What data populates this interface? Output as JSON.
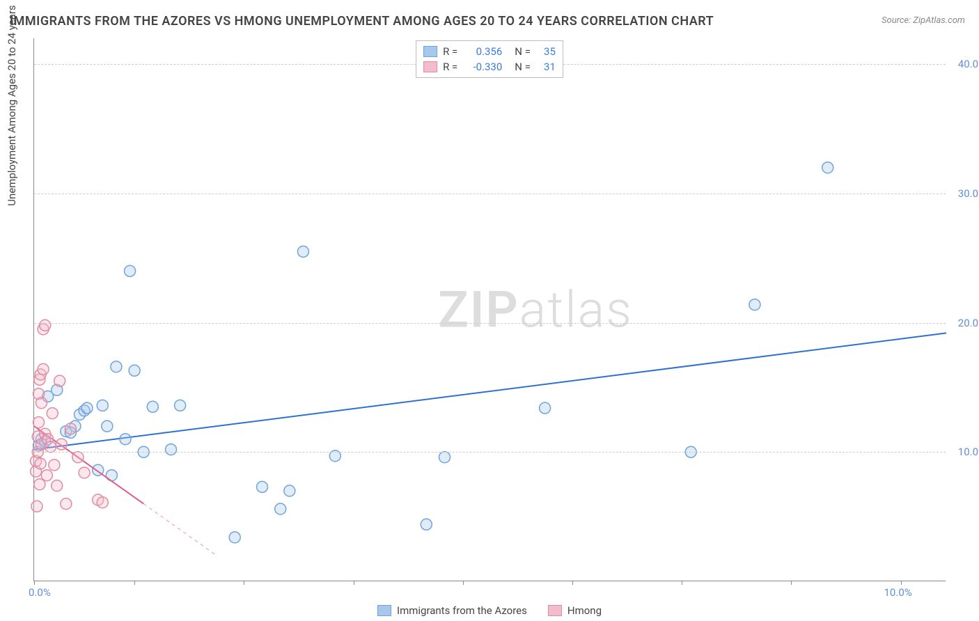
{
  "title": "IMMIGRANTS FROM THE AZORES VS HMONG UNEMPLOYMENT AMONG AGES 20 TO 24 YEARS CORRELATION CHART",
  "source": "Source: ZipAtlas.com",
  "ylabel": "Unemployment Among Ages 20 to 24 years",
  "watermark_a": "ZIP",
  "watermark_b": "atlas",
  "chart": {
    "type": "scatter-with-regression",
    "xlim": [
      0,
      10
    ],
    "ylim": [
      0,
      42
    ],
    "yticks": [
      10,
      20,
      30,
      40
    ],
    "ytick_labels": [
      "10.0%",
      "20.0%",
      "30.0%",
      "40.0%"
    ],
    "xticks": [
      0,
      1.1,
      2.3,
      3.5,
      4.7,
      5.9,
      7.1,
      8.3,
      9.5
    ],
    "xtick_labels_shown": {
      "0": "0.0%",
      "9.5": "10.0%"
    },
    "grid_color": "#cccccc",
    "background_color": "#ffffff",
    "marker_radius": 8,
    "marker_stroke_width": 1.5,
    "marker_fill_opacity": 0.35,
    "line_width": 2,
    "series": [
      {
        "name": "Immigrants from the Azores",
        "key": "azores",
        "color_stroke": "#6fa3db",
        "color_fill": "#a7c8ea",
        "r": 0.356,
        "n": 35,
        "regression": {
          "x1": 0,
          "y1": 10.2,
          "x2": 10,
          "y2": 19.2,
          "dash_after_x": null
        },
        "points": [
          [
            0.05,
            10.5
          ],
          [
            0.08,
            11.0
          ],
          [
            0.12,
            10.8
          ],
          [
            0.15,
            14.3
          ],
          [
            0.25,
            14.8
          ],
          [
            0.35,
            11.6
          ],
          [
            0.45,
            12.0
          ],
          [
            0.5,
            12.9
          ],
          [
            0.55,
            13.2
          ],
          [
            0.58,
            13.4
          ],
          [
            0.7,
            8.6
          ],
          [
            0.75,
            13.6
          ],
          [
            0.8,
            12.0
          ],
          [
            0.85,
            8.2
          ],
          [
            0.9,
            16.6
          ],
          [
            1.0,
            11.0
          ],
          [
            1.05,
            24.0
          ],
          [
            1.1,
            16.3
          ],
          [
            1.2,
            10.0
          ],
          [
            1.3,
            13.5
          ],
          [
            1.5,
            10.2
          ],
          [
            1.6,
            13.6
          ],
          [
            2.2,
            3.4
          ],
          [
            2.5,
            7.3
          ],
          [
            2.7,
            5.6
          ],
          [
            2.8,
            7.0
          ],
          [
            2.95,
            25.5
          ],
          [
            3.3,
            9.7
          ],
          [
            4.3,
            4.4
          ],
          [
            4.5,
            9.6
          ],
          [
            5.6,
            13.4
          ],
          [
            7.2,
            10.0
          ],
          [
            7.9,
            21.4
          ],
          [
            8.7,
            32.0
          ],
          [
            0.4,
            11.5
          ]
        ]
      },
      {
        "name": "Hmong",
        "key": "hmong",
        "color_stroke": "#e18aa3",
        "color_fill": "#f3bccb",
        "r": -0.33,
        "n": 31,
        "regression": {
          "x1": 0,
          "y1": 12.0,
          "x2": 2.0,
          "y2": 2.0,
          "dash_after_x": 1.2
        },
        "points": [
          [
            0.02,
            8.5
          ],
          [
            0.02,
            9.3
          ],
          [
            0.03,
            5.8
          ],
          [
            0.04,
            10.0
          ],
          [
            0.04,
            11.2
          ],
          [
            0.05,
            12.3
          ],
          [
            0.05,
            14.5
          ],
          [
            0.06,
            7.5
          ],
          [
            0.06,
            15.6
          ],
          [
            0.07,
            9.1
          ],
          [
            0.07,
            16.0
          ],
          [
            0.08,
            10.6
          ],
          [
            0.08,
            13.8
          ],
          [
            0.1,
            16.4
          ],
          [
            0.1,
            19.5
          ],
          [
            0.12,
            11.4
          ],
          [
            0.12,
            19.8
          ],
          [
            0.14,
            8.2
          ],
          [
            0.15,
            11.0
          ],
          [
            0.18,
            10.4
          ],
          [
            0.2,
            13.0
          ],
          [
            0.22,
            9.0
          ],
          [
            0.25,
            7.4
          ],
          [
            0.28,
            15.5
          ],
          [
            0.3,
            10.6
          ],
          [
            0.35,
            6.0
          ],
          [
            0.4,
            11.8
          ],
          [
            0.48,
            9.6
          ],
          [
            0.55,
            8.4
          ],
          [
            0.7,
            6.3
          ],
          [
            0.75,
            6.1
          ]
        ]
      }
    ]
  },
  "legend_top": {
    "rows": [
      {
        "swatch_fill": "#a7c8ea",
        "swatch_stroke": "#6fa3db",
        "r_label": "R =",
        "r_value": "0.356",
        "n_label": "N =",
        "n_value": "35"
      },
      {
        "swatch_fill": "#f3bccb",
        "swatch_stroke": "#e18aa3",
        "r_label": "R =",
        "r_value": "-0.330",
        "n_label": "N =",
        "n_value": "31"
      }
    ]
  },
  "legend_bottom": {
    "items": [
      {
        "swatch_fill": "#a7c8ea",
        "swatch_stroke": "#6fa3db",
        "label": "Immigrants from the Azores"
      },
      {
        "swatch_fill": "#f3bccb",
        "swatch_stroke": "#e18aa3",
        "label": "Hmong"
      }
    ]
  }
}
